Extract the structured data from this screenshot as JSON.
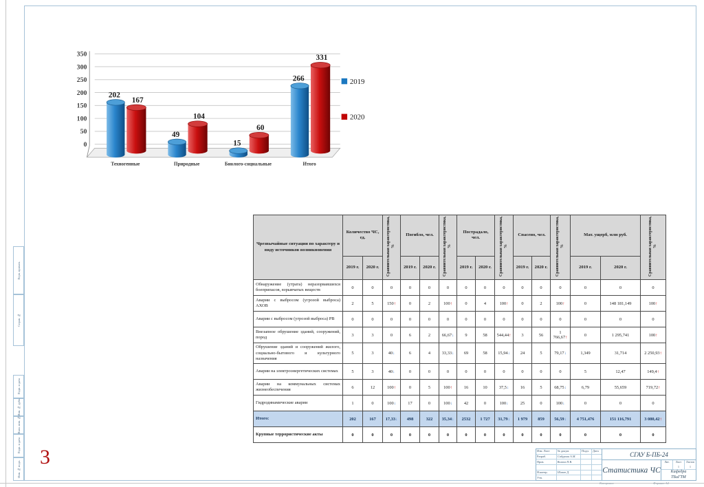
{
  "page": {
    "number": "3"
  },
  "chart_data": {
    "type": "bar",
    "title": "",
    "categories": [
      "Техногенные",
      "Природные",
      "Биолого-социальные",
      "Итого"
    ],
    "series": [
      {
        "name": "2019",
        "color_main": "#1C78C0",
        "values": [
          202,
          49,
          15,
          266
        ]
      },
      {
        "name": "2020",
        "color_main": "#C00404",
        "values": [
          167,
          104,
          60,
          331
        ]
      }
    ],
    "ylim": [
      0,
      350
    ],
    "ytick_step": 50,
    "grid": true,
    "legend_position": "right",
    "style": "3d-cylinder"
  },
  "table": {
    "row_header": "Чрезвычайные ситуации по характеру и виду источников возникновения",
    "groups": [
      {
        "label": "Количество ЧС, ед."
      },
      {
        "label": "Погибло, чел."
      },
      {
        "label": "Пострадало, чел."
      },
      {
        "label": "Спасено, чел."
      },
      {
        "label": "Мат. ущерб, млн руб."
      }
    ],
    "year_cols": [
      "2019 г.",
      "2020 г."
    ],
    "compare_col": "Сравнительная характеристика, %",
    "rows": [
      {
        "label": "Обнаружение (утрата) неразорвавшихся боеприпасов, взрывчатых веществ",
        "cells": [
          "0",
          "0",
          "0",
          "0",
          "0",
          "0",
          "0",
          "0",
          "0",
          "0",
          "0",
          "0",
          "0",
          "0",
          "0"
        ]
      },
      {
        "label": "Аварии с выбросом (угрозой выброса) АХОВ",
        "cells": [
          "2",
          "5",
          "150↑",
          "0",
          "2",
          "100↑",
          "0",
          "4",
          "100↑",
          "0",
          "2",
          "100↑",
          "0",
          "148 181,149",
          "100↑"
        ]
      },
      {
        "label": "Аварии с выбросом (угрозой выброса) РВ",
        "cells": [
          "0",
          "0",
          "0",
          "0",
          "0",
          "0",
          "0",
          "0",
          "0",
          "0",
          "0",
          "0",
          "0",
          "0",
          "0"
        ]
      },
      {
        "label": "Внезапное обрушение зданий, сооружений, пород",
        "cells": [
          "3",
          "3",
          "0",
          "6",
          "2",
          "66,67↓",
          "9",
          "58",
          "544,44↑",
          "3",
          "56",
          "1 766,67↑",
          "0",
          "1 295,741",
          "100↑"
        ]
      },
      {
        "label": "Обрушение зданий и сооружений жилого, социально-бытового и культурного назначения",
        "cells": [
          "5",
          "3",
          "40↓",
          "6",
          "4",
          "33,33↓",
          "69",
          "58",
          "15,94↓",
          "24",
          "5",
          "79,17↓",
          "1,349",
          "31,714",
          "2 250,93↑"
        ]
      },
      {
        "label": "Аварии на электроэнергетических системах",
        "cells": [
          "5",
          "3",
          "40↓",
          "0",
          "0",
          "0",
          "0",
          "0",
          "0",
          "0",
          "0",
          "0",
          "5",
          "12,47",
          "149,4↑"
        ]
      },
      {
        "label": "Аварии на коммунальных системах жизнеобеспечения",
        "cells": [
          "6",
          "12",
          "100↑",
          "0",
          "5",
          "100↑",
          "16",
          "10",
          "37,5↓",
          "16",
          "5",
          "68,75↓",
          "6,79",
          "55,659",
          "719,72↑"
        ]
      },
      {
        "label": "Гидродинамические аварии",
        "cells": [
          "1",
          "0",
          "100↓",
          "17",
          "0",
          "100↓",
          "42",
          "0",
          "100↓",
          "25",
          "0",
          "100↓",
          "0",
          "0",
          "0"
        ]
      }
    ],
    "total_row": {
      "label": "Итого:",
      "cells": [
        "202",
        "167",
        "17,33↓",
        "498",
        "322",
        "35,34↓",
        "2532",
        "1 727",
        "31,79↓",
        "1 979",
        "859",
        "56,59↓",
        "4 751,476",
        "151 116,791",
        "3 080,42↑"
      ]
    },
    "footer_row": {
      "label": "Крупные террористические акты",
      "cells": [
        "0",
        "0",
        "0",
        "0",
        "0",
        "0",
        "0",
        "0",
        "0",
        "0",
        "0",
        "0",
        "0",
        "0",
        "0"
      ]
    }
  },
  "titleblock": {
    "code": "СГАУ Б-ПБ-24",
    "title": "Статистика ЧС",
    "org": "Кафедра\nТБиГТМ",
    "left_rows": [
      [
        "Изм. Лист",
        "№ докум.",
        "Подп.",
        "Дата"
      ],
      [
        "Разраб.",
        "Сабурова А.М.",
        "",
        ""
      ],
      [
        "Пров.",
        "Волков П.В.",
        "",
        ""
      ],
      [
        "",
        "",
        "",
        ""
      ],
      [
        "Н.контр.",
        "Шмит Д.",
        "",
        ""
      ],
      [
        "Утв.",
        "",
        "",
        ""
      ]
    ],
    "lit_headers": [
      "Лит.",
      "Лист",
      "Листов"
    ],
    "lit_values": [
      "",
      "1",
      "1"
    ],
    "footer_left": "Копировал",
    "footer_right": "Формат А4"
  },
  "frame_marks": {
    "group1": [
      "Перв. примен.",
      "Справ. №"
    ],
    "group2": [
      "Подп. и дата",
      "Инв. № дубл.",
      "Взам. инв. №",
      "Подп. и дата",
      "Инв. № подл."
    ]
  },
  "colors": {
    "frame_blue": "#a5c2d8",
    "header_gray": "#d8d8d8",
    "total_blue": "#c3d7ee",
    "up_arrow": "#c00000",
    "down_arrow": "#2f6fbe",
    "page_number_red": "#b01010"
  }
}
